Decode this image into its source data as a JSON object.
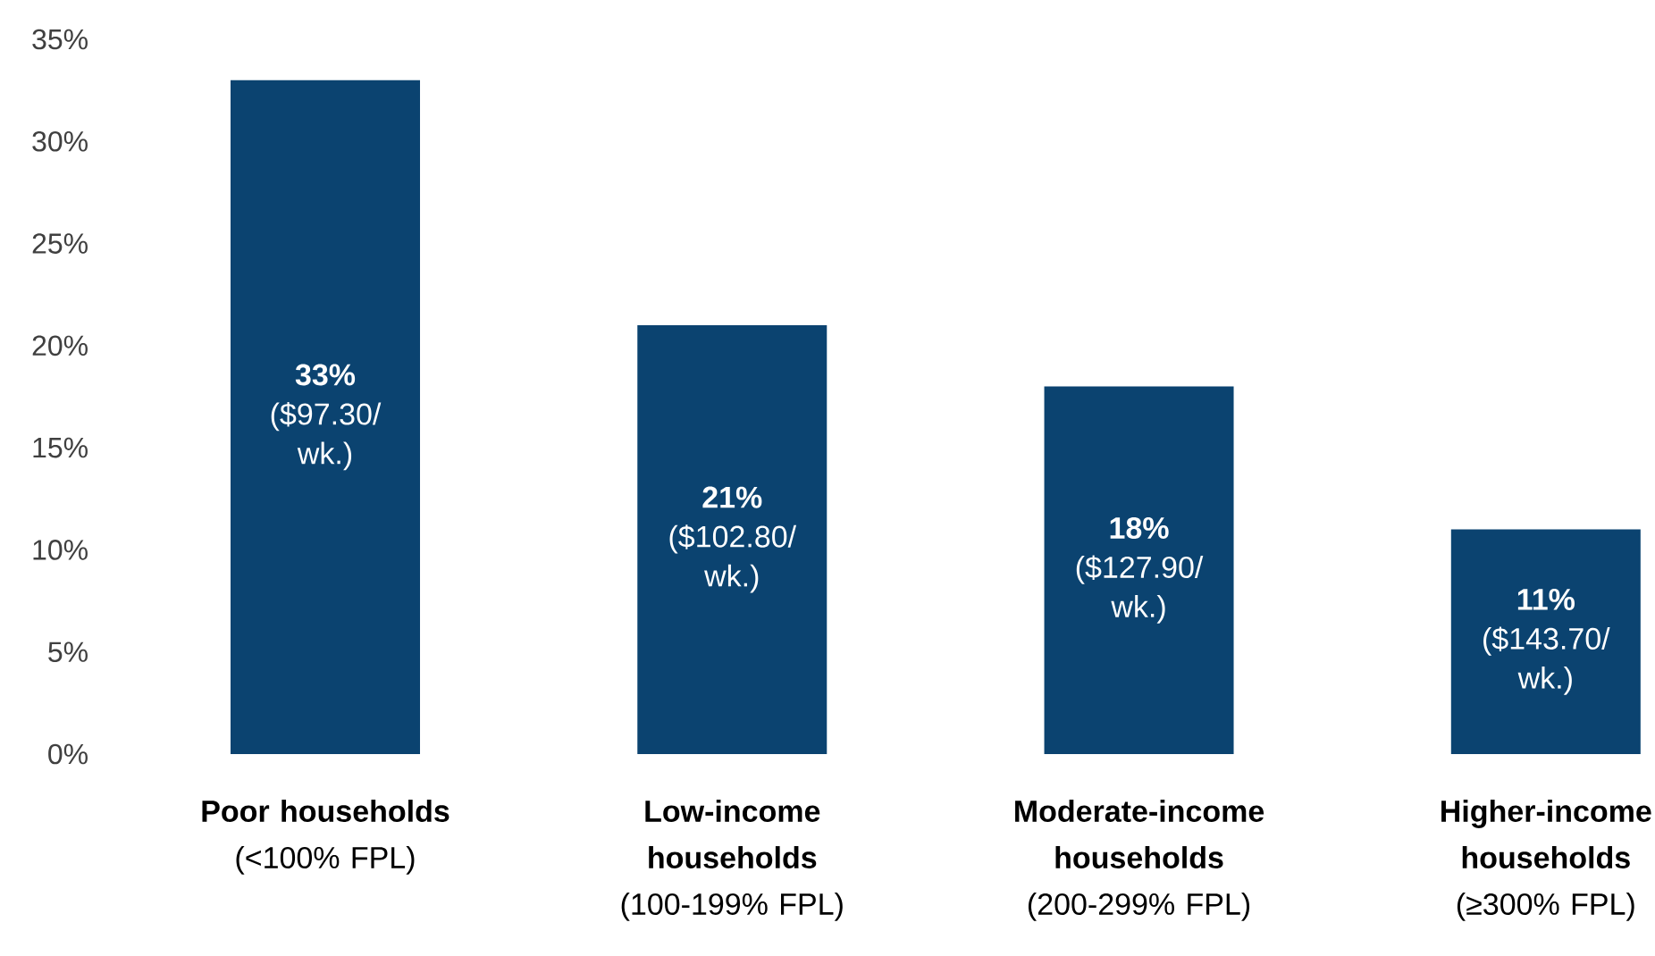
{
  "chart_data": {
    "type": "bar",
    "categories": [
      "**Poor households** (<100% FPL)",
      "**Low-income households** (100-199% FPL)",
      "**Moderate-income households** (200-299% FPL)",
      "**Higher-income households** (≥300% FPL)"
    ],
    "values": [
      33,
      21,
      18,
      11
    ],
    "value_labels": [
      "**33%** ($97.30/ wk.)",
      "**21%** ($102.80/ wk.)",
      "**18%** ($127.90/ wk.)",
      "**11%** ($143.70/ wk.)"
    ],
    "color": "#0b4370",
    "ylim": [
      0,
      35
    ],
    "yticks": [
      {
        "value": 0,
        "label": "0%"
      },
      {
        "value": 5,
        "label": "5%"
      },
      {
        "value": 10,
        "label": "10%"
      },
      {
        "value": 15,
        "label": "15%"
      },
      {
        "value": 20,
        "label": "20%"
      },
      {
        "value": 25,
        "label": "25%"
      },
      {
        "value": 30,
        "label": "30%"
      },
      {
        "value": 35,
        "label": "35%"
      }
    ],
    "grid": false
  }
}
